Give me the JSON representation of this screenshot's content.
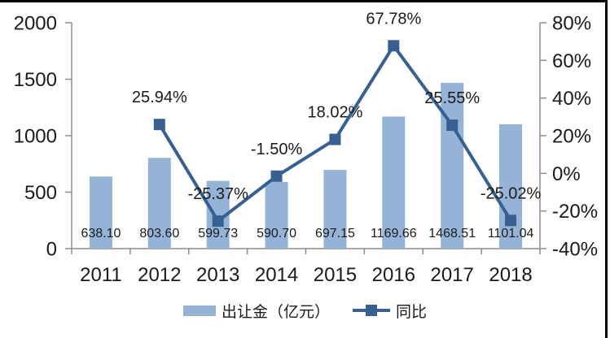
{
  "chart_data": {
    "type": "combo",
    "categories": [
      "2011",
      "2012",
      "2013",
      "2014",
      "2015",
      "2016",
      "2017",
      "2018"
    ],
    "series": [
      {
        "name": "出让金（亿元）",
        "type": "bar",
        "axis": "left",
        "color": "#95b3d7",
        "values": [
          638.1,
          803.6,
          599.73,
          590.7,
          697.15,
          1169.66,
          1468.51,
          1101.04
        ],
        "labels": [
          "638.10",
          "803.60",
          "599.73",
          "590.70",
          "697.15",
          "1169.66",
          "1468.51",
          "1101.04"
        ]
      },
      {
        "name": "同比",
        "type": "line",
        "axis": "right",
        "color": "#376092",
        "values": [
          null,
          25.94,
          -25.37,
          -1.5,
          18.02,
          67.78,
          25.55,
          -25.02
        ],
        "labels": [
          "",
          "25.94%",
          "-25.37%",
          "-1.50%",
          "18.02%",
          "67.78%",
          "25.55%",
          "-25.02%"
        ]
      }
    ],
    "left_axis": {
      "min": 0,
      "max": 2000,
      "step": 500,
      "ticks": [
        "0",
        "500",
        "1000",
        "1500",
        "2000"
      ]
    },
    "right_axis": {
      "min": -40,
      "max": 80,
      "step": 20,
      "ticks": [
        "-40%",
        "-20%",
        "0%",
        "20%",
        "40%",
        "60%",
        "80%"
      ]
    },
    "title": "",
    "xlabel": "",
    "ylabel": "",
    "grid": false,
    "legend_position": "bottom"
  },
  "legend": {
    "bar_label": "出让金（亿元）",
    "line_label": "同比"
  },
  "colors": {
    "bar": "#95b3d7",
    "line": "#376092",
    "axis": "#8c8c8c",
    "text": "#1a1a1a",
    "frame_border": "#000000"
  }
}
